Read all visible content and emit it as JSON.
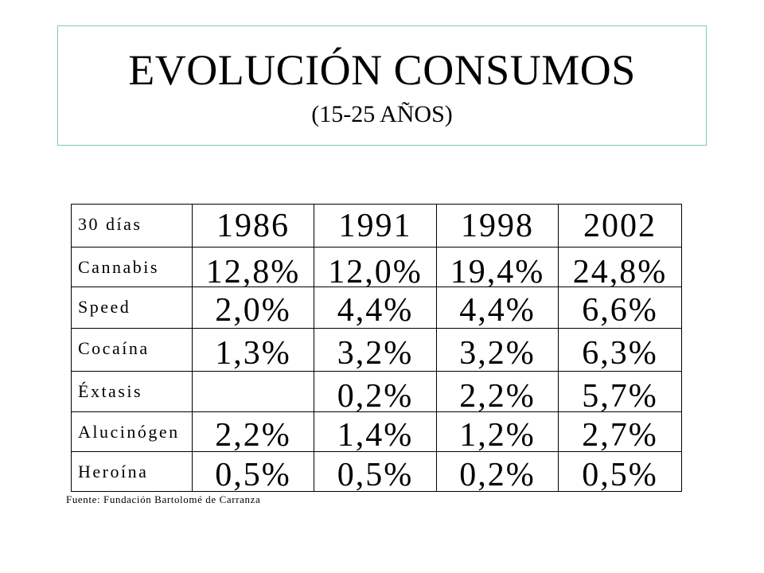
{
  "title": {
    "main": "EVOLUCIÓN CONSUMOS",
    "sub": "(15-25 AÑOS)"
  },
  "table": {
    "corner_label": "30 días",
    "years": [
      "1986",
      "1991",
      "1998",
      "2002"
    ],
    "rows": [
      {
        "label": "Cannabis",
        "values": [
          "12,8%",
          "12,0%",
          "19,4%",
          "24,8%"
        ]
      },
      {
        "label": "Speed",
        "values": [
          "2,0%",
          "4,4%",
          "4,4%",
          "6,6%"
        ]
      },
      {
        "label": "Cocaína",
        "values": [
          "1,3%",
          "3,2%",
          "3,2%",
          "6,3%"
        ]
      },
      {
        "label": "Éxtasis",
        "values": [
          "",
          "0,2%",
          "2,2%",
          "5,7%"
        ]
      },
      {
        "label": "Alucinógen",
        "values": [
          "2,2%",
          "1,4%",
          "1,2%",
          "2,7%"
        ]
      },
      {
        "label": "Heroína",
        "values": [
          "0,5%",
          "0,5%",
          "0,2%",
          "0,5%"
        ]
      }
    ]
  },
  "source": "Fuente: Fundación Bartolomé de Carranza"
}
